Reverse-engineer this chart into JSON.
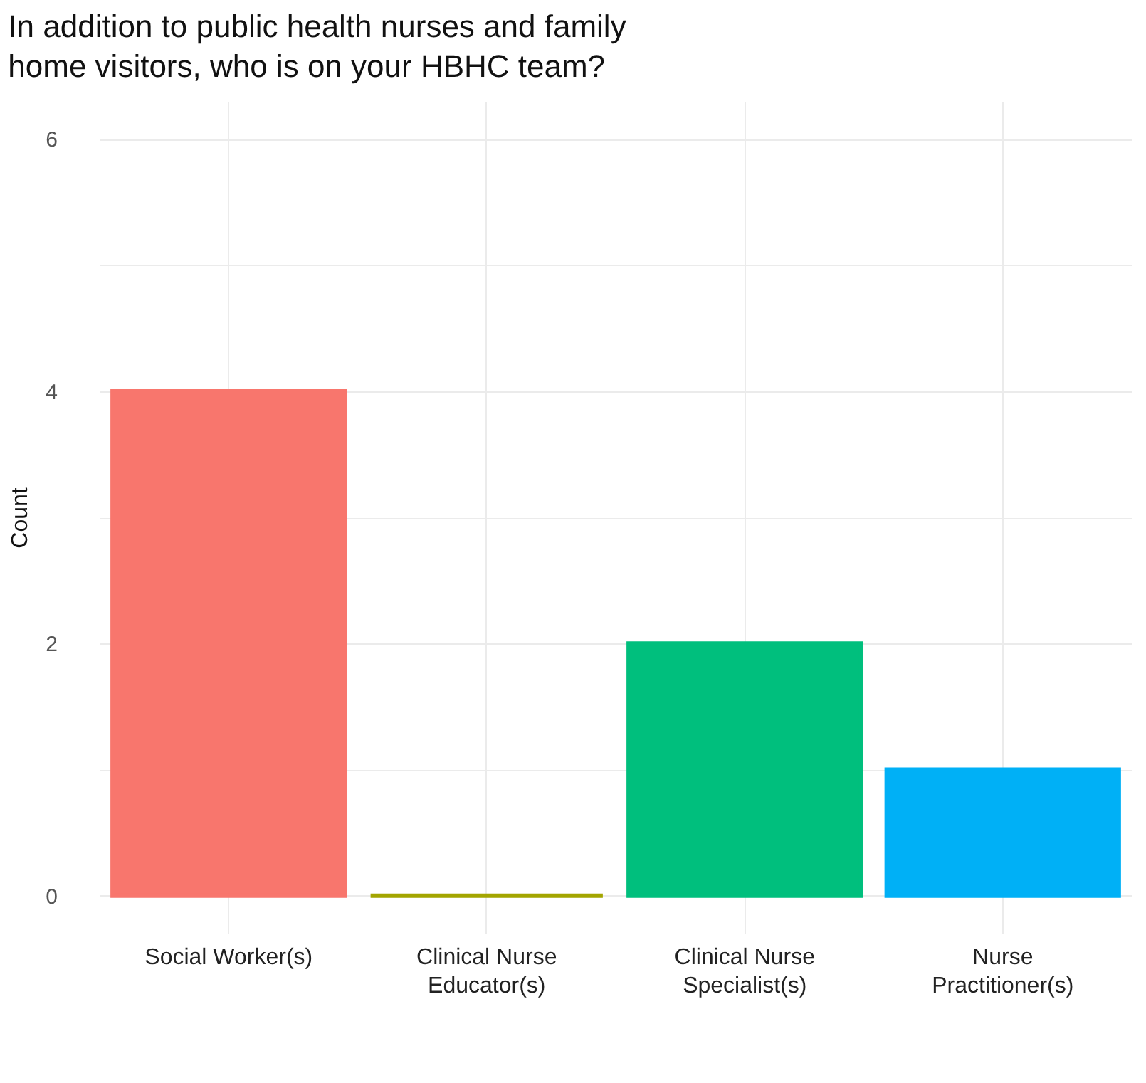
{
  "chart_data": {
    "type": "bar",
    "title": "In addition to public health nurses and family home visitors, who is on your HBHC team?",
    "ylabel": "Count",
    "categories": [
      "Social Worker(s)",
      "Clinical Nurse Educator(s)",
      "Clinical Nurse Specialist(s)",
      "Nurse Practitioner(s)"
    ],
    "values": [
      4,
      0,
      2,
      1
    ],
    "colors": [
      "#f8766d",
      "#a3a500",
      "#00bf7d",
      "#00b0f6"
    ],
    "ylim": [
      -0.3,
      6.3
    ],
    "yticks": [
      0,
      {
        "value": 1,
        "label": null
      },
      2,
      {
        "value": 3,
        "label": null
      },
      4,
      {
        "value": 5,
        "label": null
      },
      6
    ],
    "grid": true
  }
}
